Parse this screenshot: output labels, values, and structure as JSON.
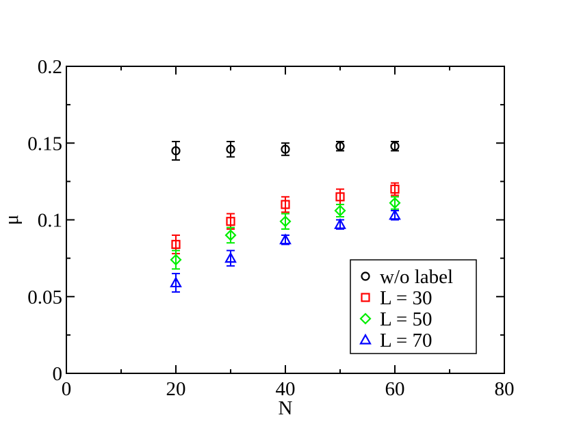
{
  "chart_data": {
    "type": "scatter",
    "title": "",
    "xlabel": "N",
    "ylabel": "μ",
    "xlim": [
      0,
      80
    ],
    "ylim": [
      0,
      0.2
    ],
    "xticks": [
      0,
      20,
      40,
      60,
      80
    ],
    "xtick_labels": [
      "0",
      "20",
      "40",
      "60",
      "80"
    ],
    "yticks": [
      0,
      0.05,
      0.1,
      0.15,
      0.2
    ],
    "ytick_labels": [
      "0",
      "0.05",
      "0.1",
      "0.15",
      "0.2"
    ],
    "grid": false,
    "legend_position": "bottom-right",
    "series": [
      {
        "name": "w/o label",
        "marker": "circle",
        "color": "#000000",
        "x": [
          20,
          30,
          40,
          50,
          60
        ],
        "y": [
          0.145,
          0.146,
          0.146,
          0.148,
          0.148
        ],
        "yerr": [
          0.006,
          0.005,
          0.004,
          0.003,
          0.003
        ]
      },
      {
        "name": "L = 30",
        "marker": "square",
        "color": "#ff0000",
        "x": [
          20,
          30,
          40,
          50,
          60
        ],
        "y": [
          0.084,
          0.099,
          0.11,
          0.115,
          0.12
        ],
        "yerr": [
          0.006,
          0.005,
          0.005,
          0.005,
          0.004
        ]
      },
      {
        "name": "L = 50",
        "marker": "diamond",
        "color": "#00ee00",
        "x": [
          20,
          30,
          40,
          50,
          60
        ],
        "y": [
          0.074,
          0.09,
          0.099,
          0.106,
          0.111
        ],
        "yerr": [
          0.006,
          0.005,
          0.005,
          0.004,
          0.004
        ]
      },
      {
        "name": "L = 70",
        "marker": "triangle",
        "color": "#0000ff",
        "x": [
          20,
          30,
          40,
          50,
          60
        ],
        "y": [
          0.059,
          0.075,
          0.087,
          0.097,
          0.103
        ],
        "yerr": [
          0.006,
          0.005,
          0.003,
          0.003,
          0.003
        ]
      }
    ]
  }
}
